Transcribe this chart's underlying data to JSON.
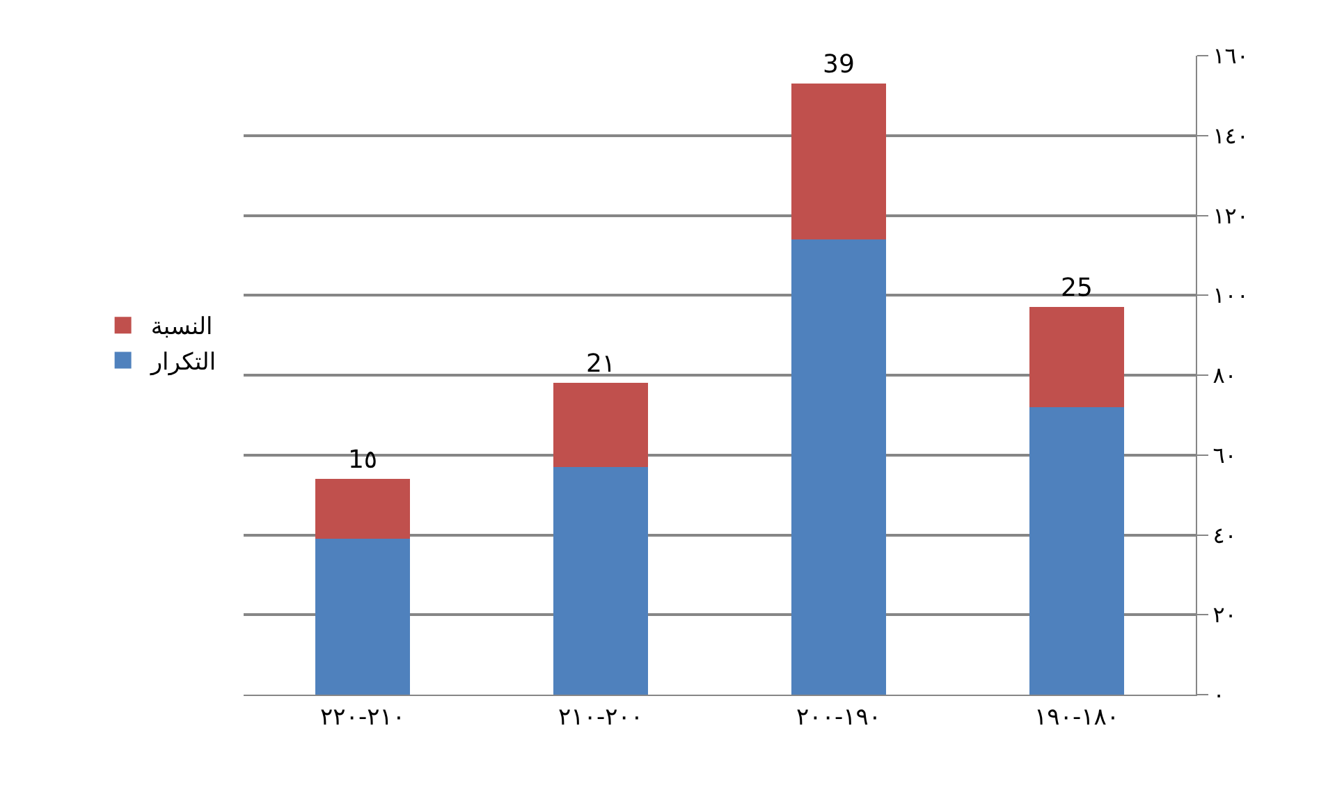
{
  "chart_data": {
    "type": "bar",
    "stacked": true,
    "categories": [
      "٢١٠-٢٢٠",
      "٢٠٠-٢١٠",
      "١٩٠-٢٠٠",
      "١٨٠-١٩٠"
    ],
    "series": [
      {
        "name": "التكرار",
        "color": "#4f81bd",
        "values": [
          39,
          57,
          114,
          72
        ]
      },
      {
        "name": "النسبة",
        "color": "#c0504d",
        "values": [
          15,
          21,
          39,
          25
        ],
        "value_labels": [
          "1٥",
          "2١",
          "39",
          "25"
        ]
      }
    ],
    "ylim": [
      0,
      160
    ],
    "yticks": [
      {
        "value": 0,
        "label": "٠"
      },
      {
        "value": 20,
        "label": "٢٠"
      },
      {
        "value": 40,
        "label": "٤٠"
      },
      {
        "value": 60,
        "label": "٦٠"
      },
      {
        "value": 80,
        "label": "٨٠"
      },
      {
        "value": 100,
        "label": "١٠٠"
      },
      {
        "value": 120,
        "label": "١٢٠"
      },
      {
        "value": 140,
        "label": "١٤٠"
      },
      {
        "value": 160,
        "label": "١٦٠"
      }
    ],
    "grid": "y",
    "legend": "left"
  }
}
